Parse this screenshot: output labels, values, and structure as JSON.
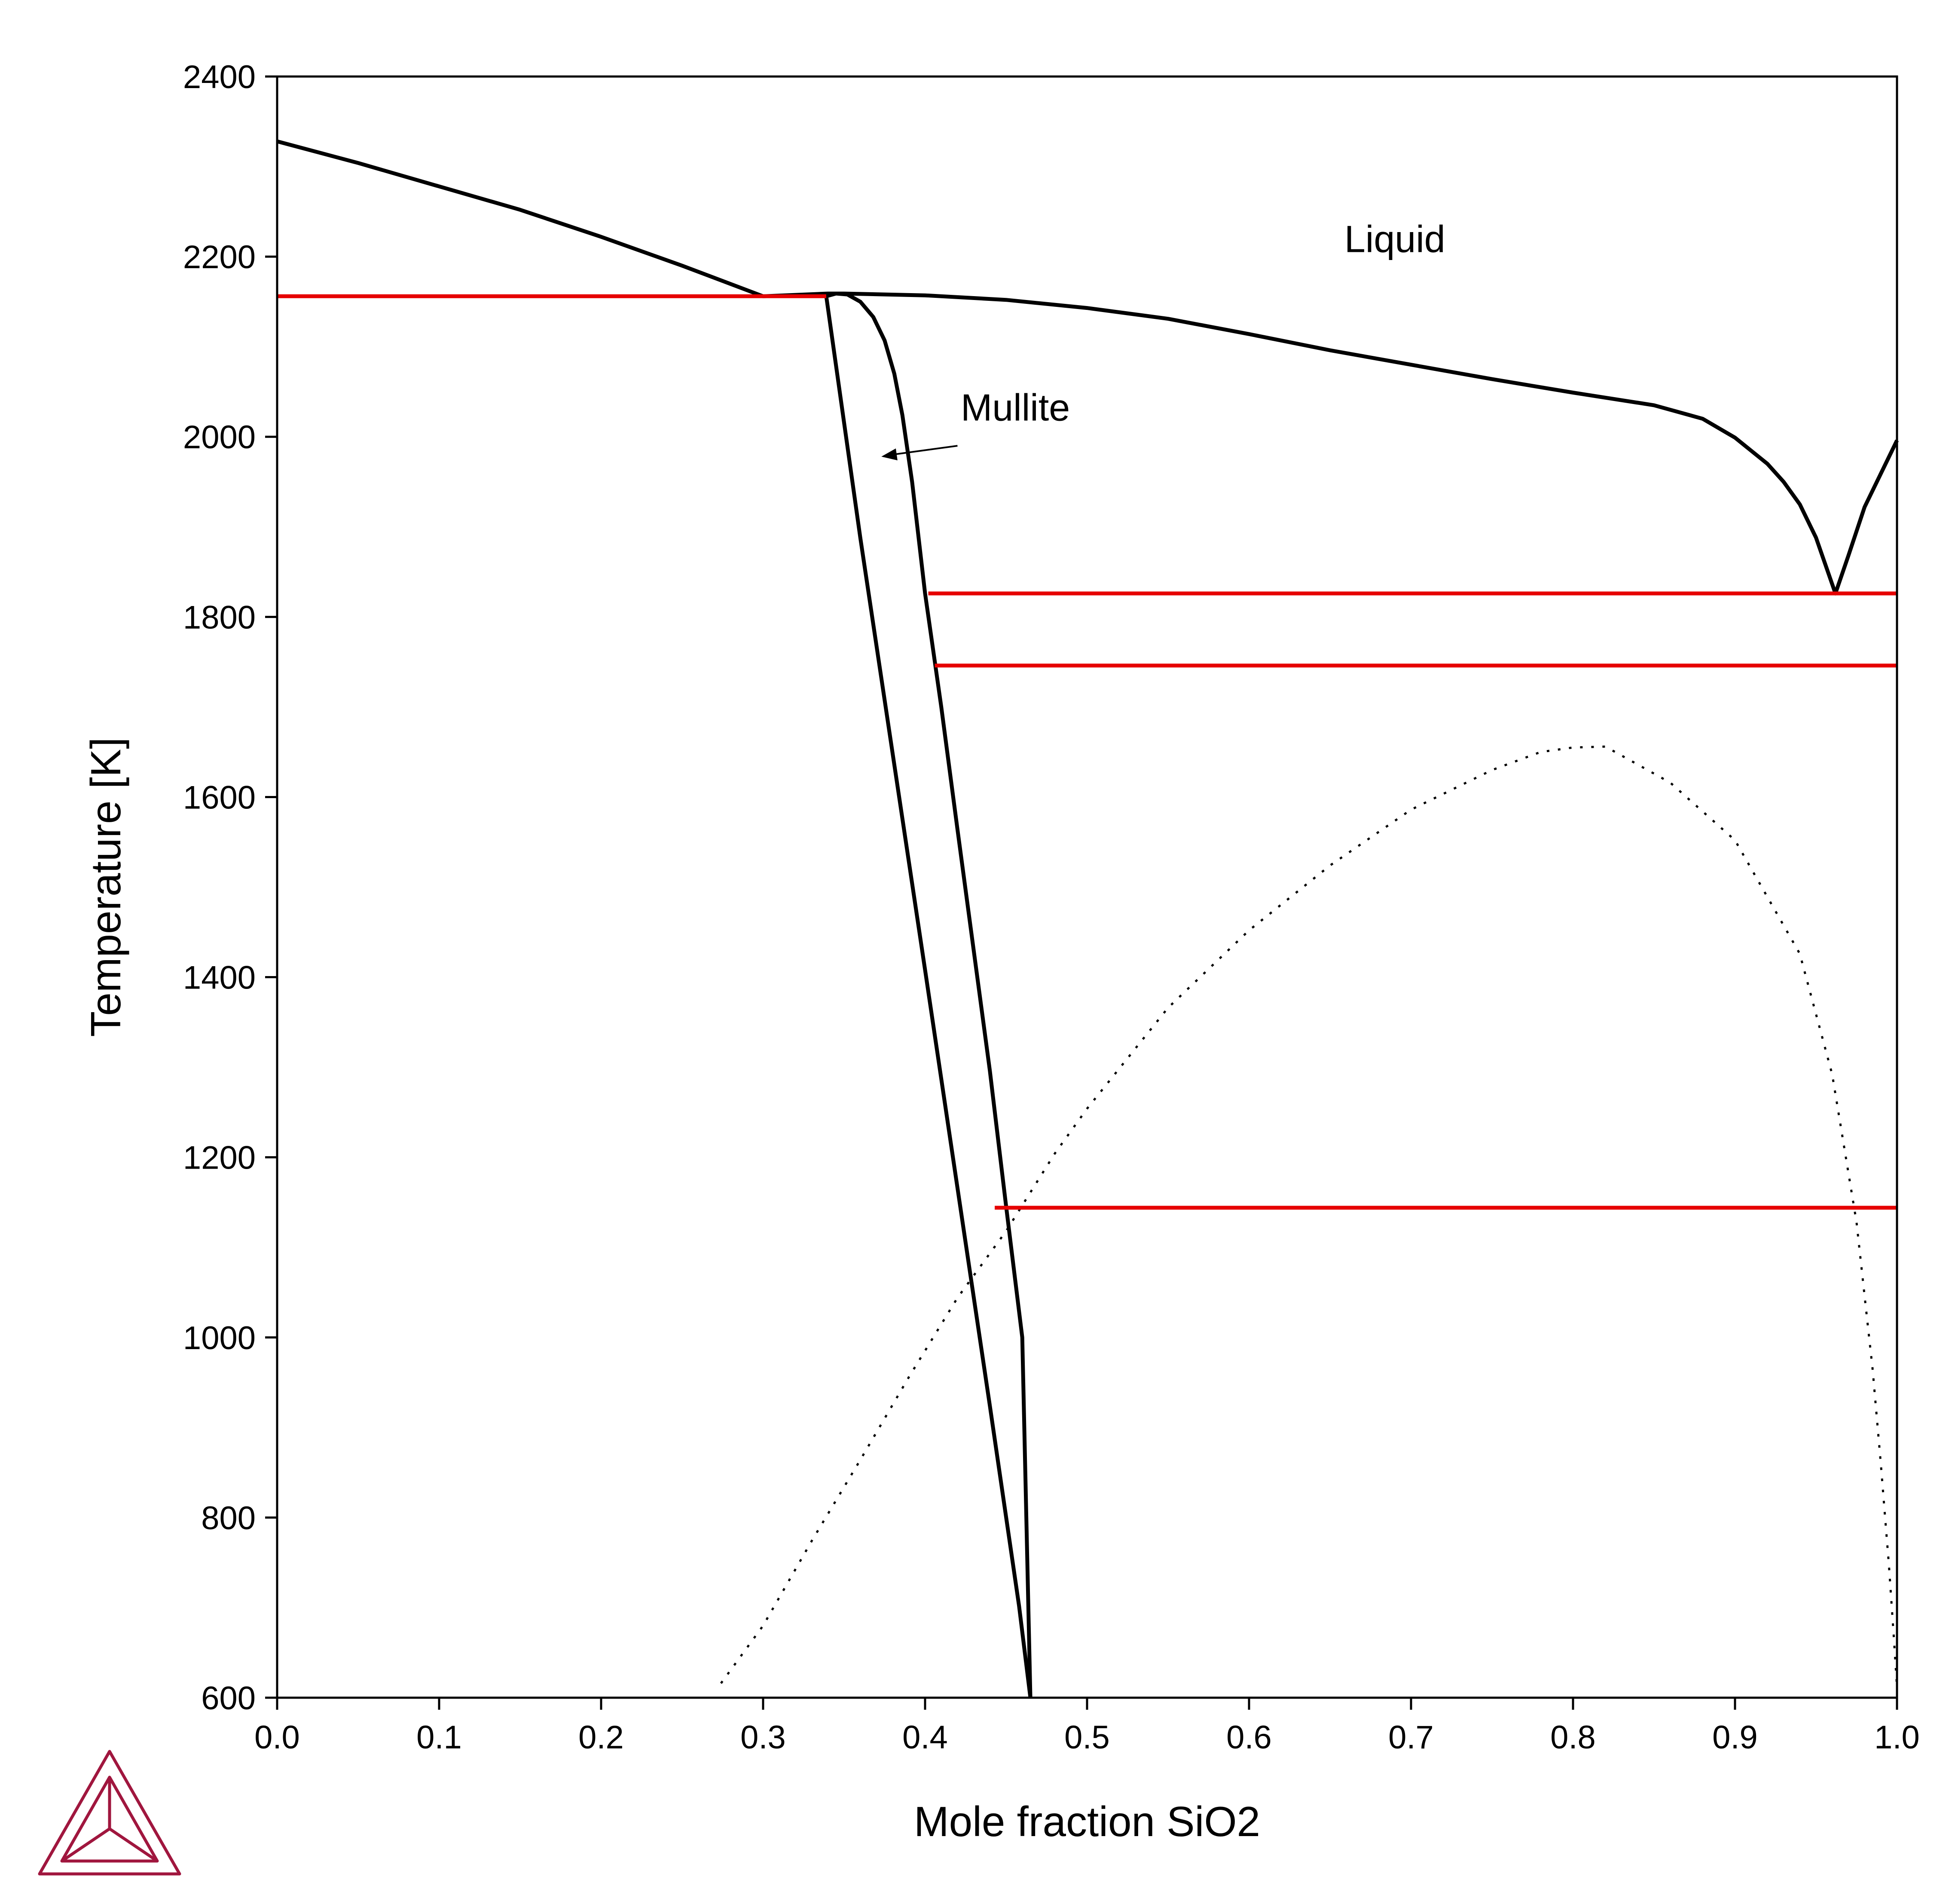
{
  "chart_data": {
    "type": "line",
    "title": "",
    "xlabel": "Mole fraction SiO2",
    "ylabel": "Temperature [K]",
    "xlim": [
      0.0,
      1.0
    ],
    "ylim": [
      600,
      2400
    ],
    "x_ticks": [
      "0.0",
      "0.1",
      "0.2",
      "0.3",
      "0.4",
      "0.5",
      "0.6",
      "0.7",
      "0.8",
      "0.9",
      "1.0"
    ],
    "y_ticks": [
      "600",
      "800",
      "1000",
      "1200",
      "1400",
      "1600",
      "1800",
      "2000",
      "2200",
      "2400"
    ],
    "grid": false,
    "legend": "none",
    "colors": {
      "phase_boundary": "#000000",
      "invariant": "#e60000",
      "logo": "#a0163e"
    },
    "series": [
      {
        "style": "solid-black",
        "points": [
          [
            0.0,
            2328
          ],
          [
            0.05,
            2304
          ],
          [
            0.1,
            2278
          ],
          [
            0.15,
            2252
          ],
          [
            0.2,
            2222
          ],
          [
            0.25,
            2190
          ],
          [
            0.3,
            2156
          ],
          [
            0.34,
            2159
          ],
          [
            0.35,
            2159
          ],
          [
            0.4,
            2157
          ],
          [
            0.45,
            2152
          ],
          [
            0.5,
            2143
          ],
          [
            0.55,
            2131
          ],
          [
            0.6,
            2114
          ],
          [
            0.65,
            2096
          ],
          [
            0.7,
            2080
          ],
          [
            0.75,
            2064
          ],
          [
            0.8,
            2049
          ],
          [
            0.85,
            2035
          ],
          [
            0.88,
            2020
          ],
          [
            0.9,
            1999
          ],
          [
            0.92,
            1970
          ],
          [
            0.93,
            1950
          ],
          [
            0.94,
            1925
          ],
          [
            0.95,
            1888
          ],
          [
            0.962,
            1826
          ],
          [
            0.97,
            1868
          ],
          [
            0.98,
            1922
          ],
          [
            1.0,
            1996
          ]
        ]
      },
      {
        "style": "solid-black",
        "points": [
          [
            0.339,
            2156
          ],
          [
            0.36,
            1888
          ],
          [
            0.38,
            1648
          ],
          [
            0.4,
            1408
          ],
          [
            0.42,
            1166
          ],
          [
            0.44,
            924
          ],
          [
            0.458,
            702
          ],
          [
            0.465,
            600
          ]
        ]
      },
      {
        "style": "solid-black",
        "points": [
          [
            0.339,
            2156
          ],
          [
            0.345,
            2159
          ],
          [
            0.352,
            2158
          ],
          [
            0.36,
            2150
          ],
          [
            0.368,
            2133
          ],
          [
            0.375,
            2107
          ],
          [
            0.381,
            2070
          ],
          [
            0.386,
            2024
          ],
          [
            0.392,
            1950
          ],
          [
            0.4,
            1826
          ],
          [
            0.41,
            1700
          ],
          [
            0.42,
            1564
          ],
          [
            0.43,
            1430
          ],
          [
            0.44,
            1296
          ],
          [
            0.45,
            1146
          ],
          [
            0.46,
            1000
          ],
          [
            0.465,
            600
          ]
        ]
      },
      {
        "style": "dotted-black",
        "points": [
          [
            0.274,
            616
          ],
          [
            0.3,
            680
          ],
          [
            0.33,
            774
          ],
          [
            0.36,
            864
          ],
          [
            0.39,
            956
          ],
          [
            0.42,
            1044
          ],
          [
            0.45,
            1118
          ],
          [
            0.48,
            1204
          ],
          [
            0.5,
            1254
          ],
          [
            0.55,
            1366
          ],
          [
            0.6,
            1452
          ],
          [
            0.65,
            1524
          ],
          [
            0.7,
            1586
          ],
          [
            0.75,
            1630
          ],
          [
            0.78,
            1650
          ],
          [
            0.8,
            1655
          ],
          [
            0.82,
            1656
          ],
          [
            0.86,
            1616
          ],
          [
            0.9,
            1552
          ],
          [
            0.94,
            1426
          ],
          [
            0.96,
            1292
          ],
          [
            0.975,
            1128
          ],
          [
            0.985,
            964
          ],
          [
            0.99,
            860
          ],
          [
            0.995,
            748
          ],
          [
            0.998,
            668
          ],
          [
            1.0,
            612
          ]
        ]
      },
      {
        "style": "red-invariant",
        "points": [
          [
            0.0,
            2156
          ],
          [
            0.339,
            2156
          ]
        ]
      },
      {
        "style": "red-invariant",
        "points": [
          [
            0.402,
            1826
          ],
          [
            1.0,
            1826
          ]
        ]
      },
      {
        "style": "red-invariant",
        "points": [
          [
            0.406,
            1746
          ],
          [
            1.0,
            1746
          ]
        ]
      },
      {
        "style": "red-invariant",
        "points": [
          [
            0.443,
            1144
          ],
          [
            1.0,
            1144
          ]
        ]
      }
    ],
    "annotations": [
      {
        "text": "Liquid",
        "x": 0.69,
        "y": 2205,
        "anchor": "middle"
      },
      {
        "text": "Mullite",
        "x": 0.422,
        "y": 2018,
        "anchor": "start",
        "arrow_to": [
          0.373,
          1978
        ],
        "arrow_from": [
          0.42,
          1990
        ]
      }
    ]
  }
}
